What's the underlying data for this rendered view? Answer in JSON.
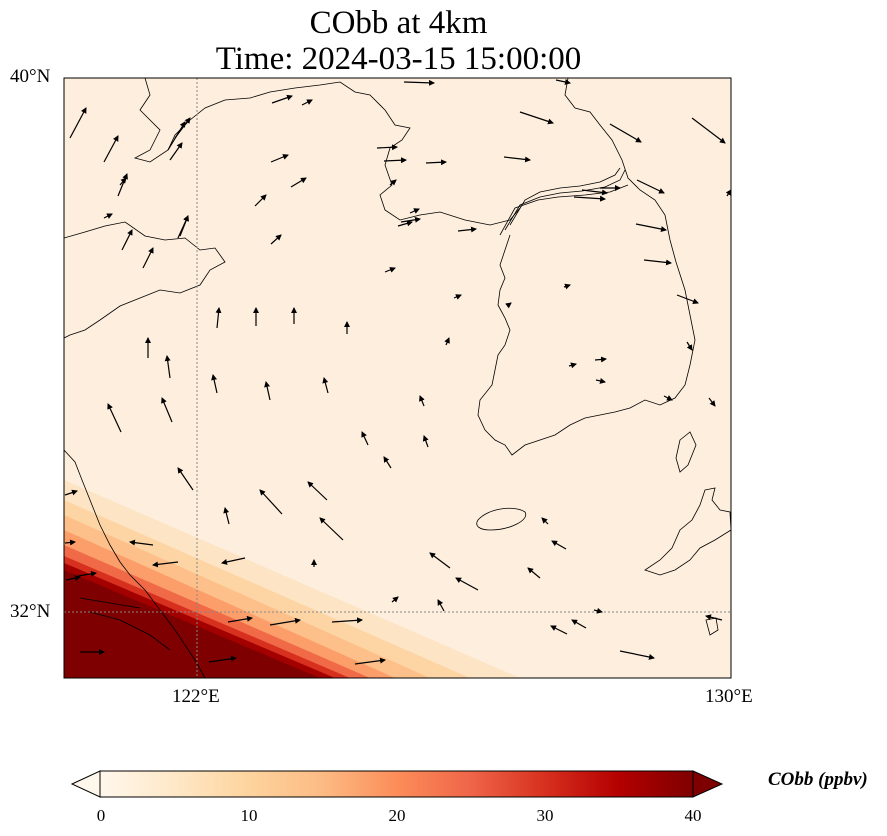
{
  "title_line1": "CObb at 4km",
  "title_line2": "Time: 2024-03-15 15:00:00",
  "lat_labels": [
    "40°N",
    "32°N"
  ],
  "lon_labels": [
    "122°E",
    "130°E"
  ],
  "colorbar": {
    "label": "CObb (ppbv)",
    "ticks": [
      "0",
      "10",
      "20",
      "30",
      "40"
    ],
    "range": [
      0,
      40
    ],
    "cmap_stops": [
      "#fff7ec",
      "#fee8c8",
      "#fdd49e",
      "#fdbb84",
      "#fc8d59",
      "#ef6548",
      "#d7301f",
      "#b30000",
      "#7f0000"
    ]
  },
  "map_extent": {
    "lon": [
      120,
      130
    ],
    "lat": [
      31,
      40
    ]
  },
  "field_note": "Near-zero CObb over most of the domain; high values (up to ~40 ppbv) in the south-west corner near the Yangtze delta.",
  "colors": {
    "background_field": "#fdeedd",
    "max_field": "#7f0000",
    "coastline": "#000000",
    "gridline": "#888888"
  }
}
